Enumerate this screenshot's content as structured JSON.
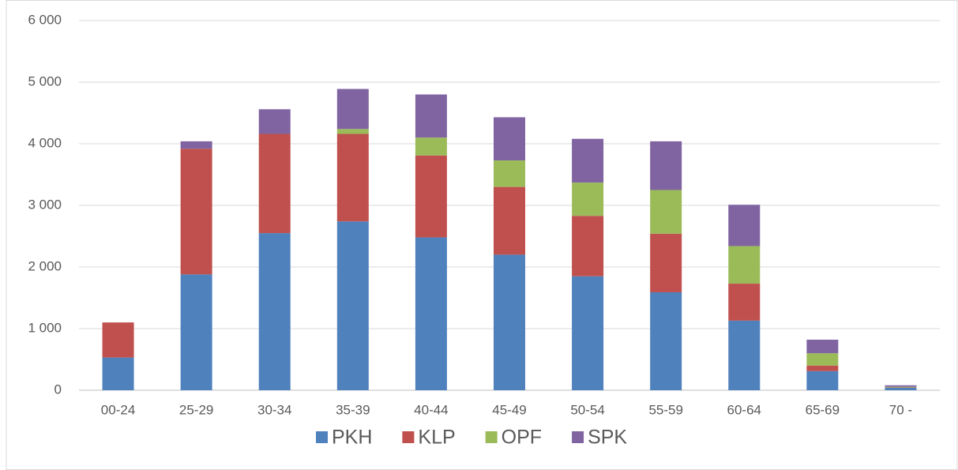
{
  "chart_data": {
    "type": "stacked_bar",
    "categories": [
      "00-24",
      "25-29",
      "30-34",
      "35-39",
      "40-44",
      "45-49",
      "50-54",
      "55-59",
      "60-64",
      "65-69",
      "70 -"
    ],
    "series": [
      {
        "name": "PKH",
        "color": "#4f81bd",
        "values": [
          530,
          1880,
          2550,
          2740,
          2480,
          2200,
          1850,
          1590,
          1130,
          310,
          40
        ]
      },
      {
        "name": "KLP",
        "color": "#c0504d",
        "values": [
          570,
          2040,
          1610,
          1420,
          1330,
          1100,
          980,
          950,
          600,
          90,
          5
        ]
      },
      {
        "name": "OPF",
        "color": "#9bbb59",
        "values": [
          0,
          0,
          0,
          80,
          290,
          430,
          540,
          710,
          610,
          200,
          10
        ]
      },
      {
        "name": "SPK",
        "color": "#8064a2",
        "values": [
          0,
          120,
          400,
          650,
          700,
          700,
          710,
          790,
          670,
          220,
          25
        ]
      }
    ],
    "ylim": [
      0,
      6000
    ],
    "yticks": [
      0,
      {
        "value": 1000,
        "label": "1 000"
      },
      {
        "value": 2000,
        "label": "2 000"
      },
      {
        "value": 3000,
        "label": "3 000"
      },
      {
        "value": 4000,
        "label": "4 000"
      },
      {
        "value": 5000,
        "label": "5 000"
      },
      {
        "value": 6000,
        "label": "6 000"
      }
    ],
    "grid": true,
    "legend": "bottom"
  }
}
